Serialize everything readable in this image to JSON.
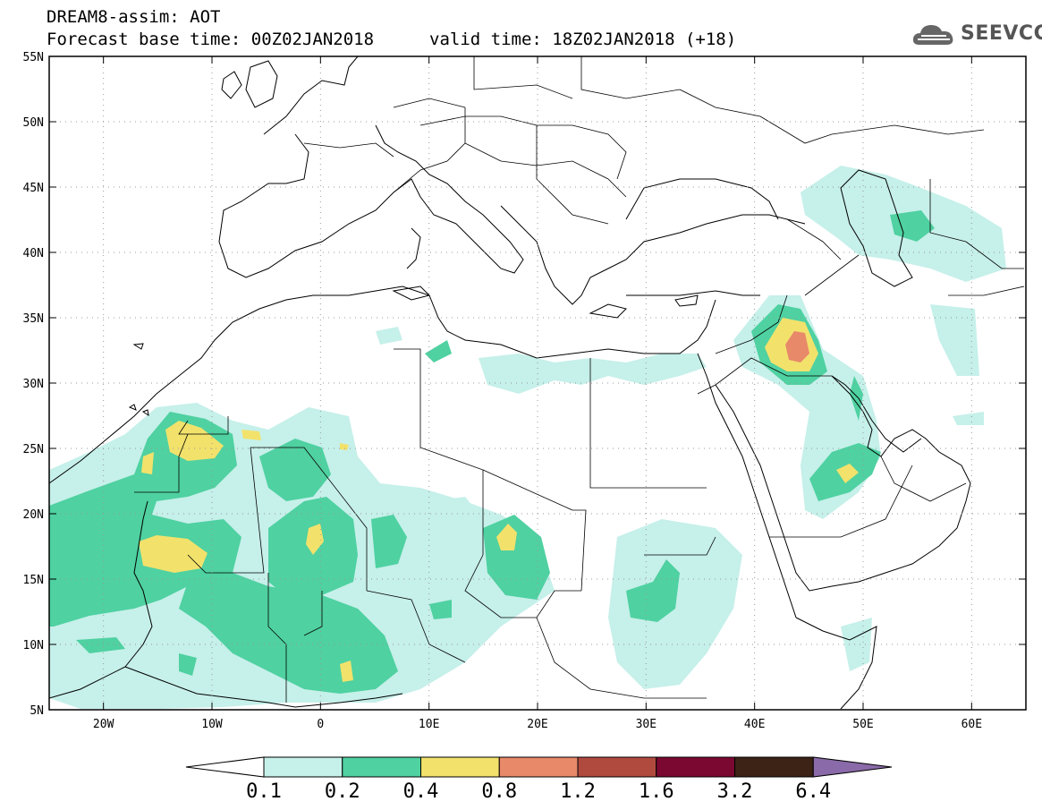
{
  "header": {
    "title": "DREAM8-assim: AOT",
    "base_time": "Forecast base time: 00Z02JAN2018",
    "valid_time": "valid time: 18Z02JAN2018 (+18)"
  },
  "logo": {
    "text": "SEEVCCC",
    "icon": "cloud-icon"
  },
  "map": {
    "lon_range": [
      -25,
      65
    ],
    "lat_range": [
      5,
      55
    ],
    "lon_ticks": [
      {
        "value": -20,
        "label": "20W"
      },
      {
        "value": -10,
        "label": "10W"
      },
      {
        "value": 0,
        "label": "0"
      },
      {
        "value": 10,
        "label": "10E"
      },
      {
        "value": 20,
        "label": "20E"
      },
      {
        "value": 30,
        "label": "30E"
      },
      {
        "value": 40,
        "label": "40E"
      },
      {
        "value": 50,
        "label": "50E"
      },
      {
        "value": 60,
        "label": "60E"
      }
    ],
    "lat_ticks": [
      {
        "value": 55,
        "label": "55N"
      },
      {
        "value": 50,
        "label": "50N"
      },
      {
        "value": 45,
        "label": "45N"
      },
      {
        "value": 40,
        "label": "40N"
      },
      {
        "value": 35,
        "label": "35N"
      },
      {
        "value": 30,
        "label": "30N"
      },
      {
        "value": 25,
        "label": "25N"
      },
      {
        "value": 20,
        "label": "20N"
      },
      {
        "value": 15,
        "label": "15N"
      },
      {
        "value": 10,
        "label": "10N"
      },
      {
        "value": 5,
        "label": "5N"
      }
    ],
    "grid": "dotted"
  },
  "colorbar": {
    "colors": [
      "#ffffff",
      "#c6f0ea",
      "#4fd1a1",
      "#f2e26c",
      "#e8896a",
      "#b04a3e",
      "#7a0830",
      "#3c2316",
      "#8a6aa8"
    ],
    "labels": [
      "0.1",
      "0.2",
      "0.4",
      "0.8",
      "1.2",
      "1.6",
      "3.2",
      "6.4"
    ]
  }
}
